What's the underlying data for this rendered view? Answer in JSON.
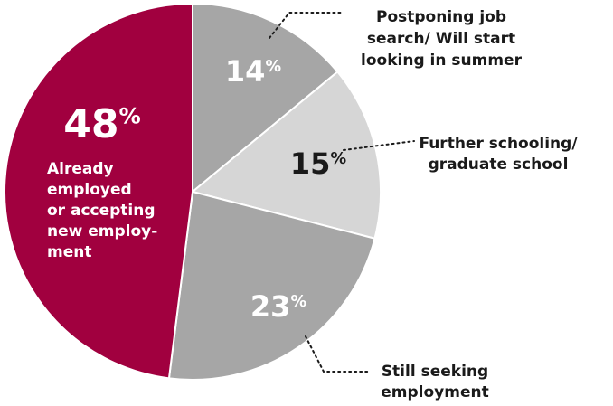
{
  "chart_data": {
    "type": "pie",
    "slices": [
      {
        "value": 48,
        "label": "48",
        "unit": "%",
        "desc": [
          "Already",
          "employed",
          "or accepting",
          "new employ-",
          "ment"
        ],
        "color": "#a1003f",
        "text_color": "#ffffff"
      },
      {
        "value": 14,
        "label": "14",
        "unit": "%",
        "desc": [
          "Postponing job",
          "search/ Will start",
          "looking in summer"
        ],
        "color": "#a6a6a6",
        "text_color": "#ffffff"
      },
      {
        "value": 15,
        "label": "15",
        "unit": "%",
        "desc": [
          "Further schooling/",
          "graduate school"
        ],
        "color": "#d6d6d6",
        "text_color": "#1a1a1a"
      },
      {
        "value": 23,
        "label": "23",
        "unit": "%",
        "desc": [
          "Still seeking",
          "employment"
        ],
        "color": "#a6a6a6",
        "text_color": "#ffffff"
      }
    ],
    "stroke": "#ffffff",
    "label_color": "#1a1a1a",
    "leader_color": "#1a1a1a"
  }
}
